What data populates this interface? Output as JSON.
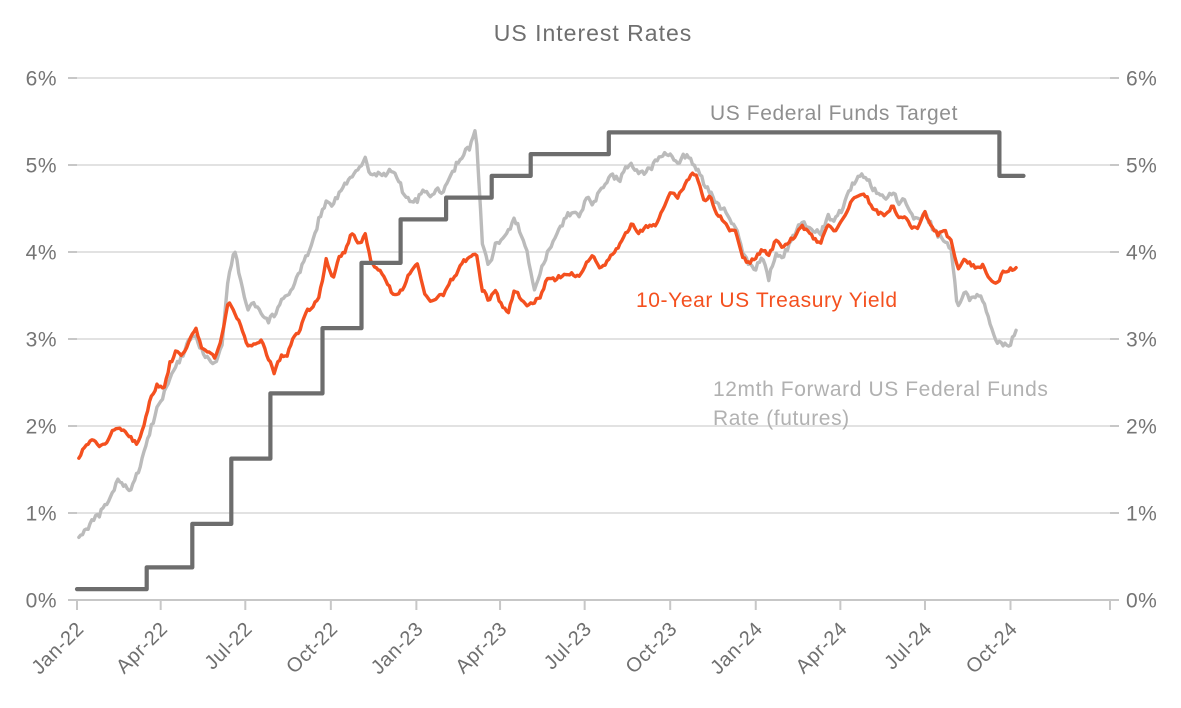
{
  "chart_data": {
    "type": "line",
    "title": "US Interest Rates",
    "xlabel": "",
    "ylabel": "",
    "grid": "horizontal",
    "legend": "inline-text-labels",
    "colors": {
      "title_text": "#6f6f6f",
      "axis_label_text": "#757575",
      "x_label_text": "#6f6f6f",
      "tick_line": "#c7c7c7",
      "grid_line": "#d9d9d9",
      "treasury_orange": "#f4501f",
      "futures_gray": "#bbbbbb",
      "target_dark_gray": "#6d6d6d",
      "target_label_text": "#8f8f8f",
      "futures_label_text": "#b1b1b1"
    },
    "y_axis": {
      "min": 0,
      "max": 6,
      "tick_step": 1,
      "sides": "both",
      "tick_labels": [
        "0%",
        "1%",
        "2%",
        "3%",
        "4%",
        "5%",
        "6%"
      ]
    },
    "x_axis": {
      "axis_start": "2022-01-01",
      "axis_end": "2025-01-16",
      "tick_dates": [
        "2022-01-01",
        "2022-04-01",
        "2022-07-01",
        "2022-10-01",
        "2023-01-01",
        "2023-04-01",
        "2023-07-01",
        "2023-10-01",
        "2024-01-01",
        "2024-04-01",
        "2024-07-01",
        "2024-10-01"
      ],
      "tick_labels": [
        "Jan-22",
        "Apr-22",
        "Jul-22",
        "Oct-22",
        "Jan-23",
        "Apr-23",
        "Jul-23",
        "Oct-23",
        "Jan-24",
        "Apr-24",
        "Jul-24",
        "Oct-24"
      ]
    },
    "annotations": {
      "target_label": {
        "text": "US Federal Funds Target"
      },
      "treasury_label": {
        "text": "10-Year US Treasury Yield"
      },
      "futures_label_line1": {
        "text": "12mth Forward US Federal Funds"
      },
      "futures_label_line2": {
        "text": "Rate (futures)"
      }
    },
    "series": [
      {
        "name": "12mth Forward US Federal Funds Rate (futures)",
        "style": "line",
        "color_key": "futures_gray",
        "width": 3.4,
        "jitter": 0.032,
        "start": "2022-01-03",
        "interval_days": 7,
        "values": [
          0.72,
          0.8,
          0.9,
          0.97,
          1.07,
          1.2,
          1.38,
          1.3,
          1.28,
          1.45,
          1.7,
          1.95,
          2.2,
          2.35,
          2.55,
          2.72,
          2.8,
          3.0,
          3.02,
          2.85,
          2.78,
          2.72,
          2.95,
          3.75,
          4.02,
          3.6,
          3.35,
          3.42,
          3.28,
          3.2,
          3.28,
          3.42,
          3.48,
          3.62,
          3.78,
          3.95,
          4.15,
          4.4,
          4.58,
          4.55,
          4.68,
          4.78,
          4.88,
          4.95,
          5.06,
          4.85,
          4.92,
          4.88,
          4.95,
          4.85,
          4.65,
          4.58,
          4.6,
          4.7,
          4.62,
          4.72,
          4.68,
          4.85,
          5.0,
          5.12,
          5.2,
          5.4,
          4.1,
          3.82,
          4.08,
          4.15,
          4.25,
          4.38,
          4.2,
          3.95,
          3.58,
          3.8,
          3.98,
          4.12,
          4.28,
          4.42,
          4.48,
          4.42,
          4.62,
          4.55,
          4.68,
          4.82,
          4.88,
          4.82,
          4.96,
          5.02,
          4.88,
          4.92,
          4.98,
          5.06,
          5.12,
          5.15,
          5.0,
          5.12,
          5.06,
          4.95,
          4.8,
          4.68,
          4.55,
          4.5,
          4.35,
          4.28,
          4.0,
          3.85,
          3.82,
          3.92,
          3.7,
          3.96,
          3.92,
          4.06,
          4.22,
          4.36,
          4.3,
          4.26,
          4.2,
          4.42,
          4.36,
          4.46,
          4.62,
          4.8,
          4.86,
          4.88,
          4.72,
          4.66,
          4.6,
          4.7,
          4.56,
          4.6,
          4.42,
          4.36,
          4.46,
          4.3,
          4.2,
          4.15,
          4.05,
          3.35,
          3.55,
          3.45,
          3.5,
          3.45,
          3.15,
          2.95,
          2.95,
          2.93,
          3.1
        ]
      },
      {
        "name": "10-Year US Treasury Yield",
        "style": "line",
        "color_key": "treasury_orange",
        "width": 3.4,
        "jitter": 0.022,
        "start": "2022-01-03",
        "interval_days": 7,
        "values": [
          1.63,
          1.77,
          1.83,
          1.78,
          1.79,
          1.93,
          1.99,
          1.94,
          1.86,
          1.78,
          2.0,
          2.32,
          2.46,
          2.42,
          2.72,
          2.86,
          2.82,
          2.99,
          3.12,
          2.88,
          2.86,
          2.78,
          3.04,
          3.44,
          3.3,
          3.13,
          2.9,
          2.96,
          2.99,
          2.8,
          2.62,
          2.79,
          2.82,
          3.01,
          3.11,
          3.33,
          3.36,
          3.52,
          3.92,
          3.67,
          3.94,
          4.02,
          4.23,
          4.07,
          4.19,
          3.86,
          3.8,
          3.72,
          3.55,
          3.5,
          3.62,
          3.78,
          3.85,
          3.55,
          3.44,
          3.48,
          3.52,
          3.66,
          3.72,
          3.9,
          3.93,
          4.0,
          3.57,
          3.44,
          3.55,
          3.38,
          3.32,
          3.58,
          3.44,
          3.38,
          3.42,
          3.5,
          3.7,
          3.68,
          3.72,
          3.76,
          3.74,
          3.72,
          3.87,
          3.99,
          3.8,
          3.88,
          3.97,
          4.08,
          4.2,
          4.33,
          4.22,
          4.28,
          4.29,
          4.34,
          4.55,
          4.68,
          4.64,
          4.74,
          4.89,
          4.87,
          4.6,
          4.64,
          4.43,
          4.38,
          4.26,
          4.22,
          3.93,
          3.88,
          3.94,
          4.03,
          3.96,
          4.12,
          4.07,
          4.1,
          4.19,
          4.29,
          4.26,
          4.15,
          4.09,
          4.32,
          4.24,
          4.33,
          4.44,
          4.64,
          4.64,
          4.65,
          4.48,
          4.45,
          4.42,
          4.55,
          4.39,
          4.41,
          4.27,
          4.27,
          4.46,
          4.29,
          4.2,
          4.24,
          4.14,
          3.8,
          3.9,
          3.86,
          3.81,
          3.85,
          3.68,
          3.63,
          3.76,
          3.8,
          3.82
        ]
      },
      {
        "name": "US Federal Funds Target",
        "style": "step",
        "color_key": "target_dark_gray",
        "width": 4.2,
        "jitter": 0,
        "end": "2024-10-15",
        "points": [
          [
            "2022-01-01",
            0.125
          ],
          [
            "2022-03-17",
            0.375
          ],
          [
            "2022-05-05",
            0.875
          ],
          [
            "2022-06-16",
            1.625
          ],
          [
            "2022-07-28",
            2.375
          ],
          [
            "2022-09-22",
            3.125
          ],
          [
            "2022-11-03",
            3.875
          ],
          [
            "2022-12-15",
            4.375
          ],
          [
            "2023-02-02",
            4.625
          ],
          [
            "2023-03-23",
            4.875
          ],
          [
            "2023-05-04",
            5.125
          ],
          [
            "2023-07-27",
            5.375
          ],
          [
            "2024-09-19",
            4.875
          ]
        ]
      }
    ]
  }
}
